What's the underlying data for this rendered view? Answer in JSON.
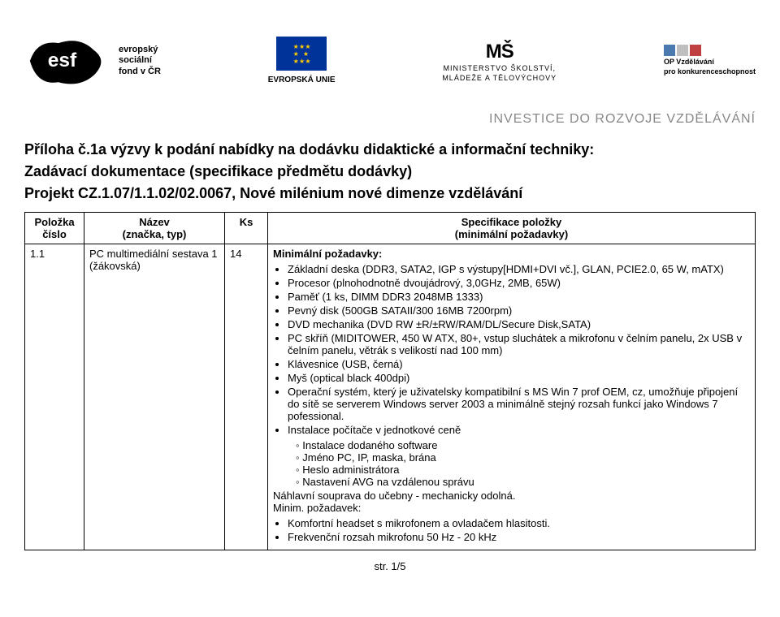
{
  "logos": {
    "esf_line1": "evropský",
    "esf_line2": "sociální",
    "esf_line3": "fond v ČR",
    "eu_label": "EVROPSKÁ UNIE",
    "msmt_big": "MŠ",
    "msmt_l1": "MINISTERSTVO ŠKOLSTVÍ,",
    "msmt_l2": "MLÁDEŽE A TĚLOVÝCHOVY",
    "op_l1": "OP Vzdělávání",
    "op_l2": "pro konkurenceschopnost",
    "tagline": "INVESTICE DO ROZVOJE VZDĚLÁVÁNÍ"
  },
  "header": {
    "title": "Příloha č.1a výzvy k podání nabídky na dodávku didaktické a informační techniky:",
    "subtitle": "Zadávací dokumentace (specifikace předmětu dodávky)",
    "project": "Projekt  CZ.1.07/1.1.02/02.0067, Nové milénium nové dimenze vzdělávání"
  },
  "table": {
    "headers": {
      "col1_l1": "Položka",
      "col1_l2": "číslo",
      "col2_l1": "Název",
      "col2_l2": "(značka, typ)",
      "col3": "Ks",
      "col4_l1": "Specifikace položky",
      "col4_l2": "(minimální požadavky)"
    },
    "row": {
      "num": "1.1",
      "name": "PC multimediální sestava 1 (žákovská)",
      "ks": "14",
      "lead": "Minimální požadavky:",
      "bullets": [
        "Základní deska (DDR3, SATA2, IGP s výstupy[HDMI+DVI vč.], GLAN, PCIE2.0, 65 W, mATX)",
        "Procesor (plnohodnotně dvoujádrový, 3,0GHz, 2MB, 65W)",
        "Paměť (1 ks, DIMM DDR3 2048MB 1333)",
        "Pevný disk (500GB SATAII/300 16MB 7200rpm)",
        "DVD mechanika (DVD RW  ±R/±RW/RAM/DL/Secure Disk,SATA)",
        "PC skříň (MIDITOWER,  450 W ATX, 80+, vstup sluchátek a mikrofonu v čelním panelu, 2x USB v čelním panelu, větrák s velikostí nad 100 mm)",
        "Klávesnice (USB, černá)",
        "Myš (optical black  400dpi)",
        "Operační systém, který je uživatelsky kompatibilní s MS Win 7 prof OEM, cz, umožňuje připojení do sítě se serverem Windows server 2003 a minimálně stejný rozsah funkcí jako Windows 7 pofessional.",
        "Instalace počítače v jednotkové ceně"
      ],
      "subbullets": [
        "Instalace dodaného software",
        "Jméno PC, IP, maska, brána",
        "Heslo administrátora",
        "Nastavení AVG na vzdálenou správu"
      ],
      "after1": "Náhlavní souprava do učebny - mechanicky odolná.",
      "after2": "Minim. požadavek:",
      "bullets2": [
        "Komfortní headset s mikrofonem a ovladačem hlasitosti.",
        "Frekvenční rozsah mikrofonu 50 Hz - 20 kHz"
      ]
    }
  },
  "footer": "str. 1/5",
  "colors": {
    "text": "#000000",
    "grey": "#888888",
    "eu_blue": "#003399",
    "eu_gold": "#ffcc00",
    "op_blue": "#4a7ab0",
    "op_grey": "#bfbfbf",
    "op_red": "#c04040"
  }
}
